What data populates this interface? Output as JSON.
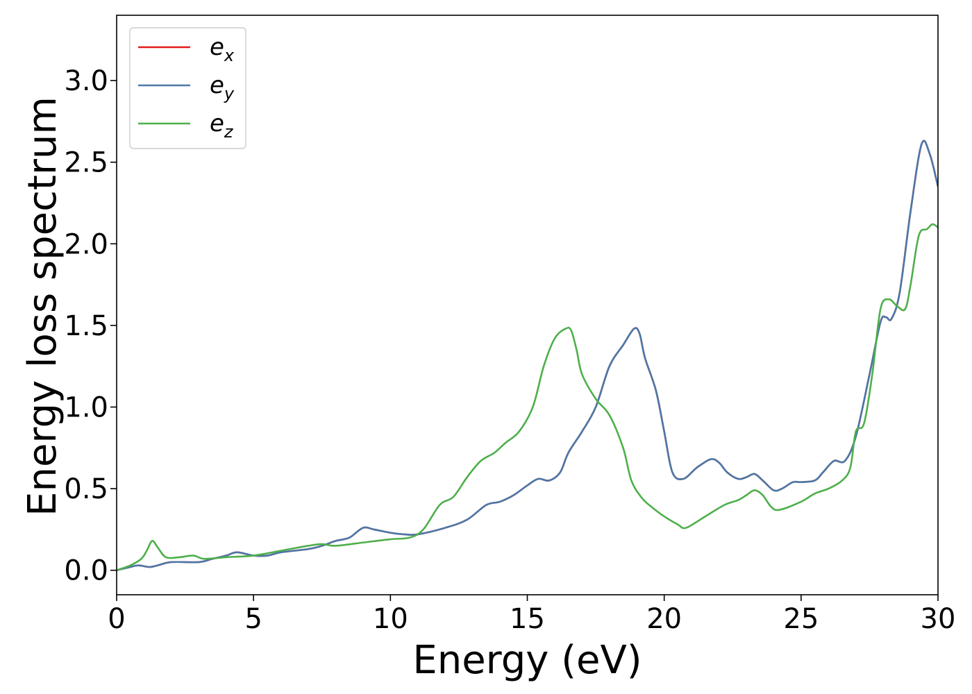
{
  "chart_data": {
    "type": "line",
    "xlabel": "Energy (eV)",
    "ylabel": "Energy loss spectrum",
    "xlim": [
      0,
      30
    ],
    "ylim": [
      -0.15,
      3.4
    ],
    "grid": false,
    "legend_position": "top-left",
    "xticks": [
      0,
      5,
      10,
      15,
      20,
      25,
      30
    ],
    "xtick_labels": [
      "0",
      "5",
      "10",
      "15",
      "20",
      "25",
      "30"
    ],
    "yticks": [
      0.0,
      0.5,
      1.0,
      1.5,
      2.0,
      2.5,
      3.0
    ],
    "ytick_labels": [
      "0.0",
      "0.5",
      "1.0",
      "1.5",
      "2.0",
      "2.5",
      "3.0"
    ],
    "series": [
      {
        "name": "e_x",
        "legend_base": "e",
        "legend_sub": "x",
        "color": "#e41a1c",
        "x": [
          0,
          0.5,
          0.8,
          1.2,
          1.5,
          2.0,
          3.0,
          3.5,
          4.0,
          4.4,
          5.0,
          5.5,
          6.0,
          7.0,
          7.5,
          8.0,
          8.5,
          9.0,
          9.4,
          10.0,
          10.5,
          11.0,
          12.0,
          12.8,
          13.5,
          14.0,
          14.5,
          15.0,
          15.4,
          15.8,
          16.2,
          16.5,
          17.0,
          17.5,
          18.0,
          18.5,
          18.9,
          19.1,
          19.3,
          19.7,
          20.0,
          20.3,
          20.7,
          21.2,
          21.7,
          22.0,
          22.3,
          22.7,
          23.0,
          23.3,
          23.6,
          24.0,
          24.3,
          24.7,
          25.0,
          25.5,
          25.8,
          26.2,
          26.6,
          27.0,
          27.5,
          27.9,
          28.1,
          28.3,
          28.6,
          29.0,
          29.4,
          29.7,
          30.0
        ],
        "values": [
          0.0,
          0.02,
          0.03,
          0.02,
          0.03,
          0.05,
          0.05,
          0.07,
          0.09,
          0.11,
          0.09,
          0.09,
          0.11,
          0.13,
          0.15,
          0.18,
          0.2,
          0.26,
          0.25,
          0.23,
          0.22,
          0.22,
          0.26,
          0.31,
          0.4,
          0.42,
          0.46,
          0.52,
          0.56,
          0.55,
          0.6,
          0.72,
          0.85,
          1.0,
          1.25,
          1.38,
          1.48,
          1.45,
          1.3,
          1.1,
          0.85,
          0.6,
          0.56,
          0.63,
          0.68,
          0.66,
          0.6,
          0.56,
          0.57,
          0.59,
          0.55,
          0.49,
          0.5,
          0.54,
          0.54,
          0.55,
          0.6,
          0.67,
          0.67,
          0.82,
          1.2,
          1.52,
          1.55,
          1.54,
          1.7,
          2.2,
          2.61,
          2.55,
          2.35
        ]
      },
      {
        "name": "e_y",
        "legend_base": "e",
        "legend_sub": "y",
        "color": "#4a78a8",
        "x": [
          0,
          0.5,
          0.8,
          1.2,
          1.5,
          2.0,
          3.0,
          3.5,
          4.0,
          4.4,
          5.0,
          5.5,
          6.0,
          7.0,
          7.5,
          8.0,
          8.5,
          9.0,
          9.4,
          10.0,
          10.5,
          11.0,
          12.0,
          12.8,
          13.5,
          14.0,
          14.5,
          15.0,
          15.4,
          15.8,
          16.2,
          16.5,
          17.0,
          17.5,
          18.0,
          18.5,
          18.9,
          19.1,
          19.3,
          19.7,
          20.0,
          20.3,
          20.7,
          21.2,
          21.7,
          22.0,
          22.3,
          22.7,
          23.0,
          23.3,
          23.6,
          24.0,
          24.3,
          24.7,
          25.0,
          25.5,
          25.8,
          26.2,
          26.6,
          27.0,
          27.5,
          27.9,
          28.1,
          28.3,
          28.6,
          29.0,
          29.4,
          29.7,
          30.0
        ],
        "values": [
          0.0,
          0.02,
          0.03,
          0.02,
          0.03,
          0.05,
          0.05,
          0.07,
          0.09,
          0.11,
          0.09,
          0.09,
          0.11,
          0.13,
          0.15,
          0.18,
          0.2,
          0.26,
          0.25,
          0.23,
          0.22,
          0.22,
          0.26,
          0.31,
          0.4,
          0.42,
          0.46,
          0.52,
          0.56,
          0.55,
          0.6,
          0.72,
          0.85,
          1.0,
          1.25,
          1.38,
          1.48,
          1.45,
          1.3,
          1.1,
          0.85,
          0.6,
          0.56,
          0.63,
          0.68,
          0.66,
          0.6,
          0.56,
          0.57,
          0.59,
          0.55,
          0.49,
          0.5,
          0.54,
          0.54,
          0.55,
          0.6,
          0.67,
          0.67,
          0.82,
          1.2,
          1.52,
          1.55,
          1.54,
          1.7,
          2.2,
          2.61,
          2.55,
          2.35
        ]
      },
      {
        "name": "e_z",
        "legend_base": "e",
        "legend_sub": "z",
        "color": "#4daf4a",
        "x": [
          0,
          0.5,
          0.9,
          1.1,
          1.3,
          1.5,
          1.8,
          2.3,
          2.8,
          3.2,
          4.0,
          5.0,
          6.0,
          7.0,
          7.5,
          8.0,
          9.0,
          10.0,
          10.7,
          11.2,
          11.8,
          12.3,
          12.8,
          13.3,
          13.8,
          14.2,
          14.7,
          15.2,
          15.6,
          16.0,
          16.4,
          16.6,
          16.8,
          17.0,
          17.5,
          18.0,
          18.5,
          18.8,
          19.2,
          19.6,
          20.0,
          20.5,
          20.8,
          21.5,
          22.2,
          22.7,
          23.0,
          23.3,
          23.6,
          23.9,
          24.2,
          25.0,
          25.5,
          26.0,
          26.5,
          26.8,
          27.0,
          27.3,
          27.6,
          27.9,
          28.2,
          28.5,
          28.8,
          29.0,
          29.3,
          29.6,
          29.8,
          30.0
        ],
        "values": [
          0.0,
          0.03,
          0.07,
          0.12,
          0.18,
          0.14,
          0.08,
          0.08,
          0.09,
          0.07,
          0.08,
          0.09,
          0.12,
          0.15,
          0.16,
          0.15,
          0.17,
          0.19,
          0.2,
          0.25,
          0.4,
          0.45,
          0.57,
          0.67,
          0.72,
          0.78,
          0.85,
          1.0,
          1.25,
          1.42,
          1.48,
          1.47,
          1.35,
          1.2,
          1.05,
          0.95,
          0.75,
          0.55,
          0.44,
          0.38,
          0.33,
          0.28,
          0.26,
          0.33,
          0.4,
          0.43,
          0.46,
          0.49,
          0.46,
          0.39,
          0.37,
          0.42,
          0.47,
          0.5,
          0.55,
          0.63,
          0.85,
          0.9,
          1.2,
          1.6,
          1.66,
          1.62,
          1.6,
          1.75,
          2.05,
          2.09,
          2.12,
          2.1
        ]
      }
    ]
  }
}
